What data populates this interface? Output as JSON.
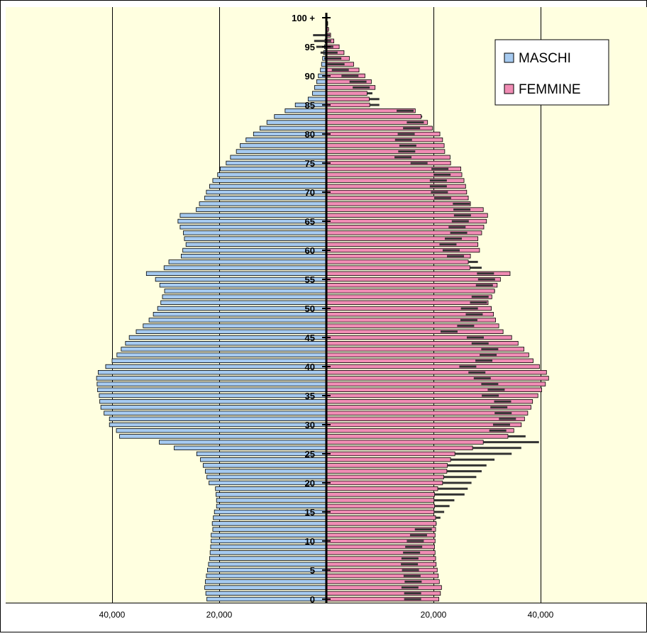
{
  "chart_data": {
    "type": "bar",
    "orientation": "horizontal",
    "layout": "population-pyramid",
    "colors": {
      "male": "#A6CAF0",
      "female": "#F08CB4",
      "plot_bg": "#FFFFE0",
      "ghost_bar": "#333333"
    },
    "legend": {
      "placement": "top-right",
      "entries": [
        "MASCHI",
        "FEMMINE"
      ]
    },
    "x_axis": {
      "ticks": [
        "40,000",
        "20,000",
        "20,000",
        "40,000"
      ],
      "range": [
        -40000,
        40000
      ],
      "grid": true
    },
    "y_axis": {
      "ticks": [
        "0",
        "5",
        "10",
        "15",
        "20",
        "25",
        "30",
        "35",
        "40",
        "45",
        "50",
        "55",
        "60",
        "65",
        "70",
        "75",
        "80",
        "85",
        "90",
        "95",
        "100 +"
      ],
      "range": [
        0,
        100
      ]
    },
    "ages": [
      0,
      1,
      2,
      3,
      4,
      5,
      6,
      7,
      8,
      9,
      10,
      11,
      12,
      13,
      14,
      15,
      16,
      17,
      18,
      19,
      20,
      21,
      22,
      23,
      24,
      25,
      26,
      27,
      28,
      29,
      30,
      31,
      32,
      33,
      34,
      35,
      36,
      37,
      38,
      39,
      40,
      41,
      42,
      43,
      44,
      45,
      46,
      47,
      48,
      49,
      50,
      51,
      52,
      53,
      54,
      55,
      56,
      57,
      58,
      59,
      60,
      61,
      62,
      63,
      64,
      65,
      66,
      67,
      68,
      69,
      70,
      71,
      72,
      73,
      74,
      75,
      76,
      77,
      78,
      79,
      80,
      81,
      82,
      83,
      84,
      85,
      86,
      87,
      88,
      89,
      90,
      91,
      92,
      93,
      94,
      95,
      96,
      97,
      98,
      99,
      100
    ],
    "series": [
      {
        "name": "MASCHI",
        "values": [
          22300,
          22500,
          22700,
          22600,
          22400,
          22200,
          22000,
          21800,
          21700,
          21600,
          21500,
          21500,
          21200,
          21300,
          21100,
          20900,
          20500,
          20500,
          20600,
          20700,
          21900,
          22300,
          22600,
          23000,
          23500,
          24200,
          28400,
          31200,
          38600,
          39200,
          40500,
          40500,
          41500,
          42100,
          42300,
          42400,
          42700,
          42800,
          42900,
          42600,
          41200,
          40000,
          39100,
          38300,
          37500,
          36800,
          35500,
          34200,
          33100,
          32300,
          31500,
          30900,
          30600,
          30200,
          31100,
          31900,
          33600,
          30300,
          29400,
          27100,
          26800,
          26200,
          26500,
          26700,
          27300,
          27700,
          27300,
          24300,
          23700,
          22700,
          22400,
          21800,
          21200,
          20300,
          19800,
          18700,
          17900,
          16800,
          16100,
          15000,
          13600,
          12400,
          11100,
          9700,
          7700,
          5800,
          3400,
          2600,
          2200,
          1800,
          1500,
          1100,
          900,
          700,
          500,
          350,
          250,
          160,
          100,
          60,
          100
        ]
      },
      {
        "name": "FEMMINE",
        "values": [
          21000,
          21300,
          21500,
          21100,
          20900,
          20700,
          20500,
          20400,
          20300,
          20200,
          20300,
          20300,
          20400,
          20500,
          20400,
          20100,
          20200,
          20100,
          20200,
          20800,
          21700,
          21900,
          22500,
          22600,
          23200,
          24000,
          27300,
          29300,
          33900,
          35000,
          36400,
          37000,
          37600,
          38200,
          38500,
          39500,
          40200,
          40900,
          41500,
          41100,
          39800,
          38600,
          37800,
          36900,
          35800,
          34600,
          33000,
          32200,
          31600,
          31200,
          30800,
          30200,
          30900,
          31400,
          31900,
          32500,
          34300,
          26800,
          26500,
          26900,
          28600,
          28300,
          28300,
          29000,
          29400,
          29900,
          30100,
          29300,
          26900,
          26500,
          26200,
          26000,
          25700,
          25300,
          25100,
          23200,
          23100,
          22100,
          22000,
          21700,
          21200,
          19800,
          18900,
          17700,
          16600,
          8100,
          8000,
          7600,
          9100,
          8400,
          7200,
          6100,
          5100,
          4300,
          3300,
          2400,
          1400,
          800,
          400,
          250,
          150
        ]
      },
      {
        "name": "",
        "ghost_of": "MASCHI",
        "values": [
          22300,
          22500,
          22700,
          22600,
          22400,
          22200,
          22000,
          21800,
          21700,
          21600,
          21500,
          21500,
          21200,
          21300,
          21100,
          20900,
          20500,
          20500,
          20600,
          20700,
          21900,
          22300,
          22600,
          23000,
          23500,
          24200,
          28400,
          31200,
          38600,
          39200,
          40500,
          40500,
          41500,
          42100,
          42300,
          42400,
          42700,
          42800,
          42900,
          42600,
          41200,
          40000,
          39100,
          38300,
          37500,
          36800,
          35500,
          34200,
          33100,
          32300,
          31500,
          30900,
          30600,
          30200,
          31100,
          31900,
          33600,
          30300,
          29400,
          27100,
          26800,
          26200,
          26500,
          26700,
          27300,
          27700,
          27300,
          24300,
          23700,
          22700,
          22400,
          21800,
          21200,
          20300,
          19800,
          18700,
          17900,
          16800,
          16100,
          15000,
          13600,
          12400,
          11100,
          9700,
          7700,
          5800,
          3400,
          2600,
          2200,
          1800,
          1500,
          1100,
          900,
          700,
          500,
          350,
          250,
          160,
          100,
          60,
          100
        ]
      },
      {
        "name": "",
        "ghost_of": "FEMMINE",
        "values": [
          17700,
          17700,
          17200,
          17800,
          17600,
          17300,
          17100,
          17200,
          17500,
          17900,
          18200,
          18800,
          19700,
          20600,
          21300,
          22000,
          23000,
          23900,
          25800,
          26400,
          27100,
          28000,
          29000,
          29900,
          31400,
          34600,
          36400,
          39700,
          37200,
          33600,
          34300,
          35400,
          34600,
          33800,
          34500,
          32200,
          33300,
          32100,
          30700,
          29700,
          28000,
          31000,
          31800,
          32100,
          30300,
          29400,
          24500,
          27600,
          28200,
          29200,
          28300,
          30000,
          30300,
          31500,
          31100,
          31500,
          31300,
          29000,
          28300,
          25700,
          24900,
          24300,
          25300,
          26300,
          26000,
          26600,
          27000,
          26900,
          26800,
          23300,
          22700,
          22500,
          22500,
          23200,
          22800,
          18900,
          15900,
          16600,
          16800,
          16000,
          16500,
          17500,
          18200,
          17900,
          16300,
          9900,
          9900,
          8600,
          8100,
          7500,
          6000,
          4200,
          3400,
          2800,
          2100,
          1300,
          900,
          700,
          500,
          300,
          200
        ]
      }
    ]
  }
}
